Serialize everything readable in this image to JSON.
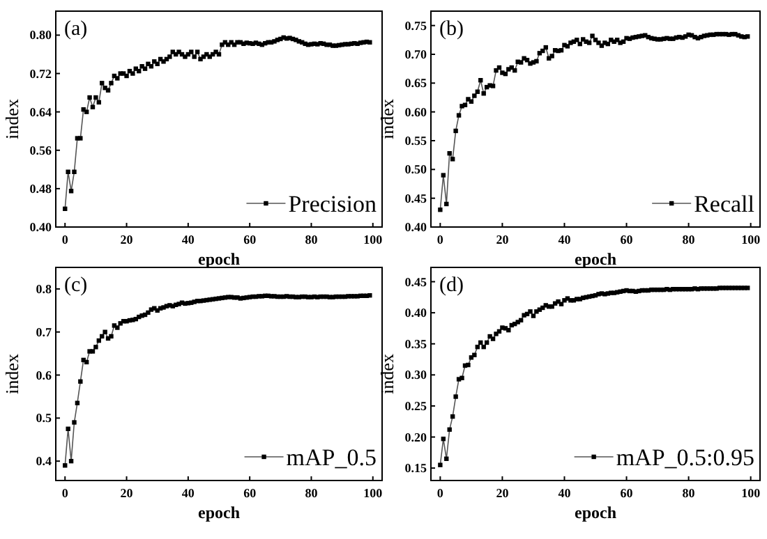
{
  "chart_data": [
    {
      "type": "line",
      "annotations": [
        "(a)"
      ],
      "xlabel": "epoch",
      "ylabel": "index",
      "legend": "bottom right",
      "marker": "square",
      "line_style": "solid",
      "grid": false,
      "xlim": [
        -3,
        103
      ],
      "xticks": [
        0,
        20,
        40,
        60,
        80,
        100
      ],
      "ylim": [
        0.4,
        0.85
      ],
      "yticks": [
        {
          "value": 0.4,
          "label": "0.40"
        },
        {
          "value": 0.48,
          "label": "0.48"
        },
        {
          "value": 0.56,
          "label": "0.56"
        },
        {
          "value": 0.64,
          "label": "0.64"
        },
        {
          "value": 0.72,
          "label": "0.72"
        },
        {
          "value": 0.8,
          "label": "0.80"
        }
      ],
      "x": [
        0,
        1,
        2,
        3,
        4,
        5,
        6,
        7,
        8,
        9,
        10,
        11,
        12,
        13,
        14,
        15,
        16,
        17,
        18,
        19,
        20,
        21,
        22,
        23,
        24,
        25,
        26,
        27,
        28,
        29,
        30,
        31,
        32,
        33,
        34,
        35,
        36,
        37,
        38,
        39,
        40,
        41,
        42,
        43,
        44,
        45,
        46,
        47,
        48,
        49,
        50,
        51,
        52,
        53,
        54,
        55,
        56,
        57,
        58,
        59,
        60,
        61,
        62,
        63,
        64,
        65,
        66,
        67,
        68,
        69,
        70,
        71,
        72,
        73,
        74,
        75,
        76,
        77,
        78,
        79,
        80,
        81,
        82,
        83,
        84,
        85,
        86,
        87,
        88,
        89,
        90,
        91,
        92,
        93,
        94,
        95,
        96,
        97,
        98,
        99
      ],
      "series": [
        {
          "name": "Precision",
          "color": "#000000",
          "values": [
            0.438,
            0.515,
            0.475,
            0.515,
            0.585,
            0.585,
            0.645,
            0.64,
            0.67,
            0.65,
            0.67,
            0.66,
            0.7,
            0.69,
            0.685,
            0.7,
            0.715,
            0.71,
            0.72,
            0.72,
            0.715,
            0.725,
            0.72,
            0.73,
            0.725,
            0.735,
            0.73,
            0.74,
            0.735,
            0.745,
            0.74,
            0.75,
            0.745,
            0.75,
            0.755,
            0.765,
            0.76,
            0.765,
            0.76,
            0.755,
            0.76,
            0.765,
            0.755,
            0.765,
            0.75,
            0.755,
            0.76,
            0.755,
            0.76,
            0.765,
            0.76,
            0.78,
            0.785,
            0.78,
            0.785,
            0.78,
            0.785,
            0.785,
            0.782,
            0.784,
            0.783,
            0.782,
            0.784,
            0.782,
            0.78,
            0.783,
            0.785,
            0.785,
            0.787,
            0.79,
            0.792,
            0.795,
            0.793,
            0.794,
            0.792,
            0.79,
            0.787,
            0.785,
            0.782,
            0.78,
            0.781,
            0.782,
            0.781,
            0.783,
            0.782,
            0.78,
            0.78,
            0.778,
            0.778,
            0.779,
            0.78,
            0.781,
            0.781,
            0.782,
            0.783,
            0.782,
            0.784,
            0.785,
            0.786,
            0.785
          ]
        }
      ]
    },
    {
      "type": "line",
      "annotations": [
        "(b)"
      ],
      "xlabel": "epoch",
      "ylabel": "index",
      "legend": "bottom right",
      "marker": "square",
      "line_style": "solid",
      "grid": false,
      "xlim": [
        -3,
        103
      ],
      "xticks": [
        0,
        20,
        40,
        60,
        80,
        100
      ],
      "ylim": [
        0.4,
        0.775
      ],
      "yticks": [
        {
          "value": 0.4,
          "label": "0.40"
        },
        {
          "value": 0.45,
          "label": "0.45"
        },
        {
          "value": 0.5,
          "label": "0.50"
        },
        {
          "value": 0.55,
          "label": "0.55"
        },
        {
          "value": 0.6,
          "label": "0.60"
        },
        {
          "value": 0.65,
          "label": "0.65"
        },
        {
          "value": 0.7,
          "label": "0.70"
        },
        {
          "value": 0.75,
          "label": "0.75"
        }
      ],
      "x": [
        0,
        1,
        2,
        3,
        4,
        5,
        6,
        7,
        8,
        9,
        10,
        11,
        12,
        13,
        14,
        15,
        16,
        17,
        18,
        19,
        20,
        21,
        22,
        23,
        24,
        25,
        26,
        27,
        28,
        29,
        30,
        31,
        32,
        33,
        34,
        35,
        36,
        37,
        38,
        39,
        40,
        41,
        42,
        43,
        44,
        45,
        46,
        47,
        48,
        49,
        50,
        51,
        52,
        53,
        54,
        55,
        56,
        57,
        58,
        59,
        60,
        61,
        62,
        63,
        64,
        65,
        66,
        67,
        68,
        69,
        70,
        71,
        72,
        73,
        74,
        75,
        76,
        77,
        78,
        79,
        80,
        81,
        82,
        83,
        84,
        85,
        86,
        87,
        88,
        89,
        90,
        91,
        92,
        93,
        94,
        95,
        96,
        97,
        98,
        99
      ],
      "series": [
        {
          "name": "Recall",
          "color": "#000000",
          "values": [
            0.43,
            0.49,
            0.44,
            0.528,
            0.518,
            0.567,
            0.594,
            0.61,
            0.612,
            0.622,
            0.618,
            0.628,
            0.635,
            0.655,
            0.632,
            0.643,
            0.646,
            0.645,
            0.672,
            0.677,
            0.668,
            0.666,
            0.674,
            0.677,
            0.672,
            0.687,
            0.686,
            0.693,
            0.69,
            0.684,
            0.686,
            0.688,
            0.702,
            0.706,
            0.712,
            0.693,
            0.697,
            0.707,
            0.706,
            0.707,
            0.716,
            0.714,
            0.72,
            0.722,
            0.725,
            0.718,
            0.726,
            0.722,
            0.72,
            0.732,
            0.725,
            0.72,
            0.715,
            0.72,
            0.718,
            0.725,
            0.722,
            0.725,
            0.72,
            0.722,
            0.728,
            0.727,
            0.729,
            0.73,
            0.731,
            0.732,
            0.733,
            0.73,
            0.728,
            0.727,
            0.726,
            0.726,
            0.727,
            0.728,
            0.727,
            0.727,
            0.729,
            0.73,
            0.729,
            0.731,
            0.734,
            0.733,
            0.73,
            0.728,
            0.73,
            0.732,
            0.733,
            0.734,
            0.734,
            0.735,
            0.735,
            0.735,
            0.735,
            0.734,
            0.735,
            0.735,
            0.733,
            0.731,
            0.73,
            0.731
          ]
        }
      ]
    },
    {
      "type": "line",
      "annotations": [
        "(c)"
      ],
      "xlabel": "epoch",
      "ylabel": "index",
      "legend": "bottom right",
      "marker": "square",
      "line_style": "solid",
      "grid": false,
      "xlim": [
        -3,
        103
      ],
      "xticks": [
        0,
        20,
        40,
        60,
        80,
        100
      ],
      "ylim": [
        0.355,
        0.85
      ],
      "yticks": [
        0.4,
        0.5,
        0.6,
        0.7,
        0.8
      ],
      "x": [
        0,
        1,
        2,
        3,
        4,
        5,
        6,
        7,
        8,
        9,
        10,
        11,
        12,
        13,
        14,
        15,
        16,
        17,
        18,
        19,
        20,
        21,
        22,
        23,
        24,
        25,
        26,
        27,
        28,
        29,
        30,
        31,
        32,
        33,
        34,
        35,
        36,
        37,
        38,
        39,
        40,
        41,
        42,
        43,
        44,
        45,
        46,
        47,
        48,
        49,
        50,
        51,
        52,
        53,
        54,
        55,
        56,
        57,
        58,
        59,
        60,
        61,
        62,
        63,
        64,
        65,
        66,
        67,
        68,
        69,
        70,
        71,
        72,
        73,
        74,
        75,
        76,
        77,
        78,
        79,
        80,
        81,
        82,
        83,
        84,
        85,
        86,
        87,
        88,
        89,
        90,
        91,
        92,
        93,
        94,
        95,
        96,
        97,
        98,
        99
      ],
      "series": [
        {
          "name": "mAP_0.5",
          "color": "#000000",
          "values": [
            0.39,
            0.475,
            0.4,
            0.49,
            0.535,
            0.585,
            0.635,
            0.63,
            0.655,
            0.655,
            0.665,
            0.68,
            0.69,
            0.7,
            0.685,
            0.69,
            0.715,
            0.71,
            0.72,
            0.725,
            0.725,
            0.727,
            0.728,
            0.73,
            0.735,
            0.738,
            0.74,
            0.745,
            0.752,
            0.755,
            0.75,
            0.755,
            0.757,
            0.76,
            0.762,
            0.76,
            0.763,
            0.765,
            0.768,
            0.766,
            0.767,
            0.768,
            0.77,
            0.772,
            0.772,
            0.773,
            0.774,
            0.775,
            0.776,
            0.777,
            0.778,
            0.779,
            0.78,
            0.781,
            0.781,
            0.78,
            0.78,
            0.778,
            0.779,
            0.78,
            0.781,
            0.782,
            0.782,
            0.783,
            0.783,
            0.784,
            0.784,
            0.783,
            0.783,
            0.782,
            0.782,
            0.782,
            0.783,
            0.782,
            0.782,
            0.781,
            0.781,
            0.782,
            0.782,
            0.781,
            0.781,
            0.782,
            0.781,
            0.782,
            0.782,
            0.782,
            0.781,
            0.781,
            0.782,
            0.782,
            0.782,
            0.782,
            0.783,
            0.783,
            0.783,
            0.783,
            0.784,
            0.784,
            0.784,
            0.785
          ]
        }
      ]
    },
    {
      "type": "line",
      "annotations": [
        "(d)"
      ],
      "xlabel": "epoch",
      "ylabel": "index",
      "legend": "bottom right",
      "marker": "square",
      "line_style": "solid",
      "grid": false,
      "xlim": [
        -3,
        103
      ],
      "xticks": [
        0,
        20,
        40,
        60,
        80,
        100
      ],
      "ylim": [
        0.13,
        0.473
      ],
      "yticks": [
        {
          "value": 0.15,
          "label": "0.15"
        },
        {
          "value": 0.2,
          "label": "0.20"
        },
        {
          "value": 0.25,
          "label": "0.25"
        },
        {
          "value": 0.3,
          "label": "0.30"
        },
        {
          "value": 0.35,
          "label": "0.35"
        },
        {
          "value": 0.4,
          "label": "0.40"
        },
        {
          "value": 0.45,
          "label": "0.45"
        }
      ],
      "x": [
        0,
        1,
        2,
        3,
        4,
        5,
        6,
        7,
        8,
        9,
        10,
        11,
        12,
        13,
        14,
        15,
        16,
        17,
        18,
        19,
        20,
        21,
        22,
        23,
        24,
        25,
        26,
        27,
        28,
        29,
        30,
        31,
        32,
        33,
        34,
        35,
        36,
        37,
        38,
        39,
        40,
        41,
        42,
        43,
        44,
        45,
        46,
        47,
        48,
        49,
        50,
        51,
        52,
        53,
        54,
        55,
        56,
        57,
        58,
        59,
        60,
        61,
        62,
        63,
        64,
        65,
        66,
        67,
        68,
        69,
        70,
        71,
        72,
        73,
        74,
        75,
        76,
        77,
        78,
        79,
        80,
        81,
        82,
        83,
        84,
        85,
        86,
        87,
        88,
        89,
        90,
        91,
        92,
        93,
        94,
        95,
        96,
        97,
        98,
        99
      ],
      "series": [
        {
          "name": "mAP_0.5:0.95",
          "color": "#000000",
          "values": [
            0.155,
            0.197,
            0.165,
            0.212,
            0.233,
            0.265,
            0.293,
            0.295,
            0.315,
            0.316,
            0.328,
            0.332,
            0.345,
            0.352,
            0.345,
            0.352,
            0.362,
            0.358,
            0.366,
            0.37,
            0.376,
            0.375,
            0.372,
            0.38,
            0.382,
            0.385,
            0.388,
            0.396,
            0.398,
            0.402,
            0.395,
            0.402,
            0.405,
            0.408,
            0.412,
            0.41,
            0.41,
            0.415,
            0.418,
            0.414,
            0.42,
            0.423,
            0.42,
            0.42,
            0.422,
            0.422,
            0.424,
            0.425,
            0.426,
            0.427,
            0.428,
            0.43,
            0.431,
            0.43,
            0.431,
            0.432,
            0.432,
            0.433,
            0.434,
            0.435,
            0.436,
            0.435,
            0.435,
            0.434,
            0.435,
            0.436,
            0.436,
            0.436,
            0.437,
            0.437,
            0.437,
            0.437,
            0.437,
            0.438,
            0.437,
            0.438,
            0.438,
            0.438,
            0.438,
            0.438,
            0.438,
            0.438,
            0.439,
            0.438,
            0.439,
            0.439,
            0.439,
            0.439,
            0.439,
            0.439,
            0.44,
            0.44,
            0.44,
            0.44,
            0.44,
            0.44,
            0.44,
            0.44,
            0.44,
            0.44
          ]
        }
      ]
    }
  ]
}
